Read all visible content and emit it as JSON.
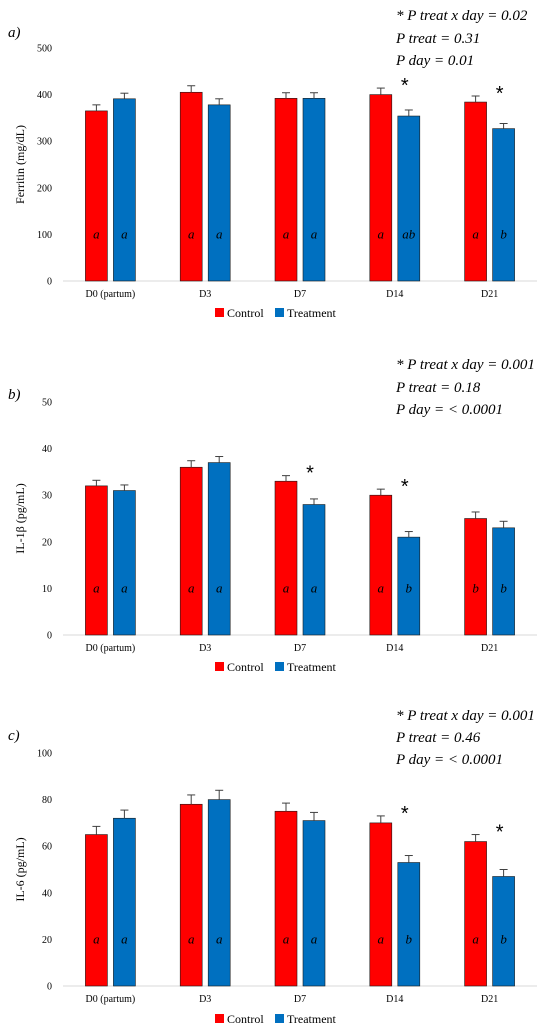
{
  "colors": {
    "control": "#ff0000",
    "treatment": "#0070c0",
    "axis": "#d9d9d9",
    "error": "#404040"
  },
  "legend": {
    "control": "Control",
    "treatment": "Treatment"
  },
  "chart_data": [
    {
      "type": "bar",
      "panel_label": "a)",
      "stats": [
        "* P treat x day = 0.02",
        "P treat = 0.31",
        "P day = 0.01"
      ],
      "ylabel": "Ferritin (mg/dL)",
      "ylim": [
        0,
        500
      ],
      "yticks": [
        0,
        100,
        200,
        300,
        400,
        500
      ],
      "categories": [
        "D0 (partum)",
        "D3",
        "D7",
        "D14",
        "D21"
      ],
      "series": [
        {
          "name": "Control",
          "values": [
            365,
            405,
            392,
            400,
            384
          ],
          "errors": [
            13,
            14,
            12,
            14,
            13
          ],
          "letters": [
            "a",
            "a",
            "a",
            "a",
            "a"
          ]
        },
        {
          "name": "Treatment",
          "values": [
            391,
            378,
            392,
            354,
            327
          ],
          "errors": [
            12,
            13,
            12,
            13,
            11
          ],
          "letters": [
            "a",
            "a",
            "a",
            "ab",
            "b"
          ]
        }
      ],
      "asterisks": [
        false,
        false,
        false,
        true,
        true
      ]
    },
    {
      "type": "bar",
      "panel_label": "b)",
      "stats": [
        "* P treat x day = 0.001",
        "P treat = 0.18",
        "P day = < 0.0001"
      ],
      "ylabel": "IL-1β (pg/mL)",
      "ylim": [
        0,
        50
      ],
      "yticks": [
        0,
        10,
        20,
        30,
        40,
        50
      ],
      "categories": [
        "D0 (partum)",
        "D3",
        "D7",
        "D14",
        "D21"
      ],
      "series": [
        {
          "name": "Control",
          "values": [
            32,
            36,
            33,
            30,
            25
          ],
          "errors": [
            1.2,
            1.4,
            1.2,
            1.3,
            1.4
          ],
          "letters": [
            "a",
            "a",
            "a",
            "a",
            "b"
          ]
        },
        {
          "name": "Treatment",
          "values": [
            31,
            37,
            28,
            21,
            23
          ],
          "errors": [
            1.2,
            1.3,
            1.2,
            1.2,
            1.4
          ],
          "letters": [
            "a",
            "a",
            "a",
            "b",
            "b"
          ]
        }
      ],
      "asterisks": [
        false,
        false,
        true,
        true,
        false
      ]
    },
    {
      "type": "bar",
      "panel_label": "c)",
      "stats": [
        "* P treat x day = 0.001",
        "P treat = 0.46",
        "P day = < 0.0001"
      ],
      "ylabel": "IL-6 (pg/mL)",
      "ylim": [
        0,
        100
      ],
      "yticks": [
        0,
        20,
        40,
        60,
        80,
        100
      ],
      "categories": [
        "D0 (partum)",
        "D3",
        "D7",
        "D14",
        "D21"
      ],
      "series": [
        {
          "name": "Control",
          "values": [
            65,
            78,
            75,
            70,
            62
          ],
          "errors": [
            3.5,
            4,
            3.5,
            3,
            3
          ],
          "letters": [
            "a",
            "a",
            "a",
            "a",
            "a"
          ]
        },
        {
          "name": "Treatment",
          "values": [
            72,
            80,
            71,
            53,
            47
          ],
          "errors": [
            3.5,
            4,
            3.5,
            3,
            3
          ],
          "letters": [
            "a",
            "a",
            "a",
            "b",
            "b"
          ]
        }
      ],
      "asterisks": [
        false,
        false,
        false,
        true,
        true
      ]
    }
  ]
}
